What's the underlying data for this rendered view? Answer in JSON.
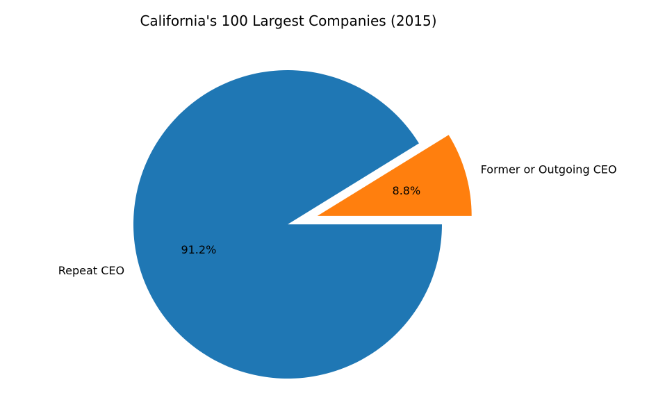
{
  "chart_data": {
    "type": "pie",
    "title": "California's 100 Largest Companies (2015)",
    "slices": [
      {
        "label": "Former or Outgoing CEO",
        "value": 8.8,
        "pct_label": "8.8%",
        "color": "#ff7f0e",
        "explode": true
      },
      {
        "label": "Repeat CEO",
        "value": 91.2,
        "pct_label": "91.2%",
        "color": "#1f77b4",
        "explode": false
      }
    ],
    "start_angle_deg": 0,
    "direction": "counterclockwise"
  }
}
